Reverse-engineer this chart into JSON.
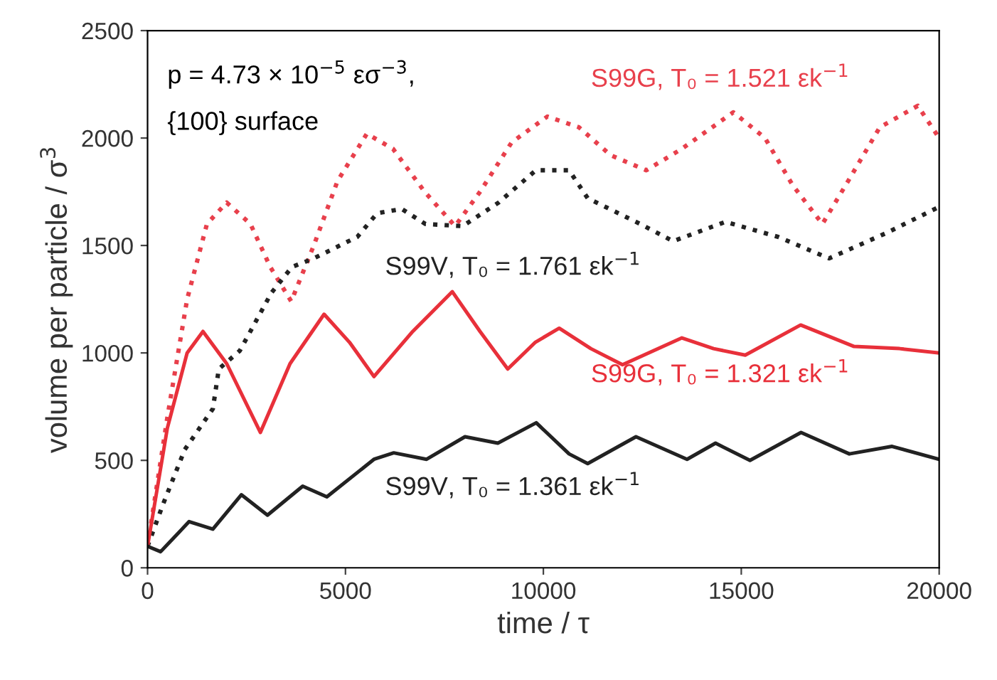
{
  "chart_data": {
    "type": "line",
    "xlabel": "time / τ",
    "ylabel": "volume per particle / σ$^{3}$",
    "xlim": [
      0,
      20000
    ],
    "ylim": [
      0,
      2500
    ],
    "xticks": [
      0,
      5000,
      10000,
      15000,
      20000
    ],
    "yticks": [
      0,
      500,
      1000,
      1500,
      2000,
      2500
    ],
    "grid": false,
    "legend": false,
    "annotations": [
      "p = 4.73 × 10$^{−5}$ εσ$^{−3}$,",
      "{100} surface"
    ],
    "series": [
      {
        "name": "S99G, T₀ = 1.521 εk$^{−1}$",
        "color": "#e8404c",
        "line_style": "dotted",
        "x": [
          0,
          500,
          1000,
          1500,
          2000,
          2600,
          3100,
          3630,
          4200,
          4800,
          5540,
          6200,
          7000,
          7770,
          8400,
          9200,
          10100,
          10900,
          11700,
          12600,
          13500,
          14800,
          15600,
          16300,
          17050,
          17700,
          18500,
          19460,
          20000
        ],
        "values": [
          100,
          700,
          1250,
          1600,
          1700,
          1600,
          1400,
          1240,
          1500,
          1800,
          2020,
          1950,
          1750,
          1590,
          1750,
          1980,
          2100,
          2050,
          1920,
          1850,
          1950,
          2120,
          2000,
          1780,
          1600,
          1800,
          2050,
          2150,
          2000
        ]
      },
      {
        "name": "S99V, T₀ = 1.761 εk$^{−1}$",
        "color": "#222222",
        "line_style": "dotted",
        "x": [
          0,
          400,
          940,
          1650,
          1800,
          2330,
          3130,
          3650,
          4200,
          5300,
          5800,
          6420,
          7020,
          7960,
          8870,
          9810,
          10650,
          11120,
          12450,
          13280,
          14600,
          15930,
          17220,
          18690,
          20000
        ],
        "values": [
          100,
          300,
          550,
          740,
          925,
          1010,
          1280,
          1400,
          1440,
          1540,
          1650,
          1670,
          1600,
          1590,
          1700,
          1850,
          1850,
          1720,
          1600,
          1520,
          1610,
          1540,
          1440,
          1560,
          1680
        ]
      },
      {
        "name": "S99G, T₀ = 1.321 εk$^{−1}$",
        "color": "#e8303a",
        "line_style": "solid",
        "x": [
          0,
          500,
          1000,
          1400,
          2000,
          2850,
          3600,
          4460,
          5100,
          5720,
          6700,
          7700,
          8400,
          9100,
          9800,
          10400,
          11200,
          12000,
          13500,
          14300,
          15100,
          16500,
          17850,
          19000,
          20000
        ],
        "values": [
          100,
          650,
          1000,
          1100,
          950,
          630,
          950,
          1180,
          1050,
          890,
          1100,
          1285,
          1100,
          925,
          1050,
          1115,
          1020,
          945,
          1070,
          1020,
          990,
          1130,
          1030,
          1020,
          1000
        ]
      },
      {
        "name": "S99V, T₀ = 1.361 εk$^{−1}$",
        "color": "#222222",
        "line_style": "solid",
        "x": [
          0,
          330,
          1050,
          1650,
          2370,
          3030,
          3920,
          4530,
          5720,
          6220,
          7050,
          8020,
          8850,
          9820,
          10650,
          11120,
          12340,
          13630,
          14350,
          15220,
          16510,
          17730,
          18810,
          20000
        ],
        "values": [
          100,
          75,
          215,
          180,
          340,
          245,
          380,
          330,
          505,
          535,
          505,
          610,
          580,
          675,
          530,
          485,
          610,
          505,
          580,
          500,
          630,
          530,
          565,
          505
        ]
      }
    ]
  }
}
